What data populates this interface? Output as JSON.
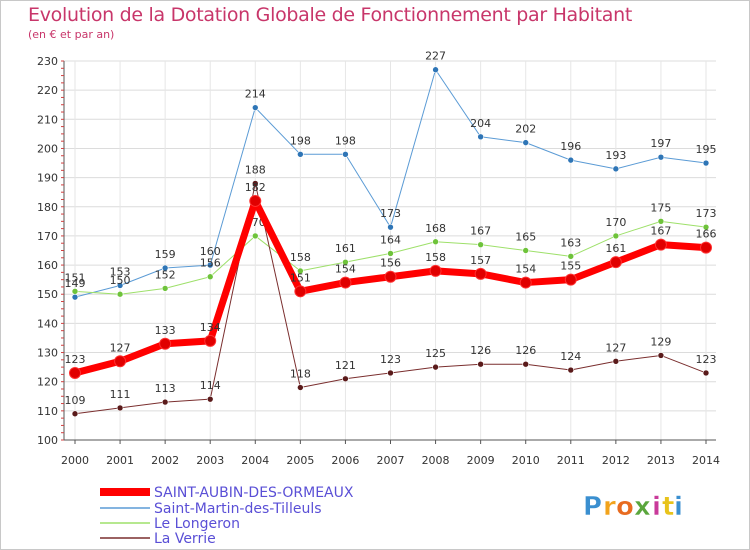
{
  "header": {
    "title": "Evolution de la Dotation Globale de Fonctionnement par Habitant",
    "subtitle": "(en € et par an)"
  },
  "brand": {
    "text": "Proxiti",
    "letters": [
      "P",
      "r",
      "o",
      "x",
      "i",
      "t",
      "i"
    ],
    "letter_colors": [
      "#3a8fd0",
      "#f2a31b",
      "#e86b1f",
      "#5aa63c",
      "#c93a9a",
      "#e8c31b",
      "#3a8fd0"
    ]
  },
  "chart_data": {
    "type": "line",
    "title": "Evolution de la Dotation Globale de Fonctionnement par Habitant",
    "subtitle": "(en € et par an)",
    "xlabel": "",
    "ylabel": "",
    "categories": [
      "2000",
      "2001",
      "2002",
      "2003",
      "2004",
      "2005",
      "2006",
      "2007",
      "2008",
      "2009",
      "2010",
      "2011",
      "2012",
      "2013",
      "2014"
    ],
    "y_ticks": [
      100,
      110,
      120,
      130,
      140,
      150,
      160,
      170,
      180,
      190,
      200,
      210,
      220,
      230
    ],
    "ylim": [
      100,
      230
    ],
    "grid": true,
    "legend_position": "bottom-left",
    "series": [
      {
        "name": "Saint-Martin-des-Tilleuls",
        "color": "#5b9bd5",
        "marker": "#2e75b6",
        "width": 1,
        "values": [
          149,
          153,
          159,
          160,
          214,
          198,
          198,
          173,
          227,
          204,
          202,
          196,
          193,
          197,
          195
        ],
        "labels": [
          "149",
          "153",
          "159",
          "160",
          "214",
          "198",
          "198",
          "173",
          "227",
          "204",
          "202",
          "196",
          "193",
          "197",
          "195"
        ]
      },
      {
        "name": "Le Longeron",
        "color": "#9ee06a",
        "marker": "#6ec33a",
        "width": 1,
        "values": [
          151,
          150,
          152,
          156,
          170,
          158,
          161,
          164,
          168,
          167,
          165,
          163,
          170,
          175,
          173
        ],
        "labels": [
          "151",
          "150",
          "152",
          "156",
          "170",
          "158",
          "161",
          "164",
          "168",
          "167",
          "165",
          "163",
          "170",
          "175",
          "173"
        ]
      },
      {
        "name": "La Verrie",
        "color": "#7a2e2e",
        "marker": "#5a1a1a",
        "width": 1,
        "values": [
          109,
          111,
          113,
          114,
          188,
          118,
          121,
          123,
          125,
          126,
          126,
          124,
          127,
          129,
          123
        ],
        "labels": [
          "109",
          "111",
          "113",
          "114",
          "188",
          "118",
          "121",
          "123",
          "125",
          "126",
          "126",
          "124",
          "127",
          "129",
          "123"
        ]
      },
      {
        "name": "SAINT-AUBIN-DES-ORMEAUX",
        "color": "#ff0000",
        "marker": "#e00000",
        "width": 7,
        "values": [
          123,
          127,
          133,
          134,
          182,
          151,
          154,
          156,
          158,
          157,
          154,
          155,
          161,
          167,
          166
        ],
        "labels": [
          "123",
          "127",
          "133",
          "134",
          "182",
          "151",
          "154",
          "156",
          "158",
          "157",
          "154",
          "155",
          "161",
          "167",
          "166"
        ]
      }
    ],
    "legend": [
      "SAINT-AUBIN-DES-ORMEAUX",
      "Saint-Martin-des-Tilleuls",
      "Le Longeron",
      "La Verrie"
    ]
  }
}
